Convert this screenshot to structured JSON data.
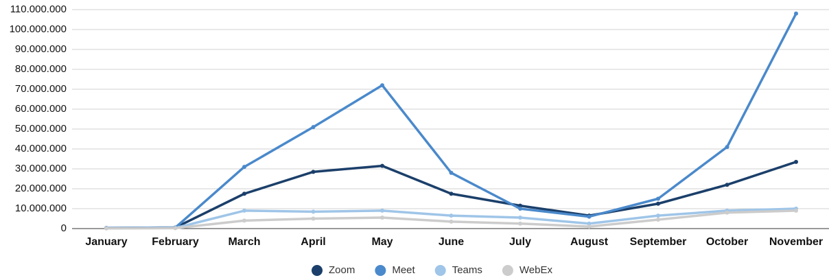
{
  "chart_data": {
    "type": "line",
    "categories": [
      "January",
      "February",
      "March",
      "April",
      "May",
      "June",
      "July",
      "August",
      "September",
      "October",
      "November"
    ],
    "series": [
      {
        "name": "Zoom",
        "color": "#1b3f6a",
        "values": [
          300000,
          500000,
          17500000,
          28500000,
          31500000,
          17500000,
          11500000,
          6500000,
          12500000,
          22000000,
          33500000
        ]
      },
      {
        "name": "Meet",
        "color": "#4a89cb",
        "values": [
          300000,
          500000,
          31000000,
          51000000,
          72000000,
          28000000,
          10000000,
          6000000,
          15000000,
          41000000,
          108000000
        ]
      },
      {
        "name": "Teams",
        "color": "#9fc5e8",
        "values": [
          200000,
          300000,
          9000000,
          8500000,
          9000000,
          6500000,
          5500000,
          2500000,
          6500000,
          9000000,
          10000000
        ]
      },
      {
        "name": "WebEx",
        "color": "#cccccc",
        "values": [
          100000,
          200000,
          4000000,
          5000000,
          5500000,
          3500000,
          2500000,
          1000000,
          4500000,
          8000000,
          9000000
        ]
      }
    ],
    "ylim": [
      0,
      110000000
    ],
    "yticks": [
      0,
      {
        "value": 10000000,
        "label": "10.000.000"
      },
      {
        "value": 20000000,
        "label": "20.000.000"
      },
      {
        "value": 30000000,
        "label": "30.000.000"
      },
      {
        "value": 40000000,
        "label": "40.000.000"
      },
      {
        "value": 50000000,
        "label": "50.000.000"
      },
      {
        "value": 60000000,
        "label": "60.000.000"
      },
      {
        "value": 70000000,
        "label": "70.000.000"
      },
      {
        "value": 80000000,
        "label": "80.000.000"
      },
      {
        "value": 90000000,
        "label": "90.000.000"
      },
      {
        "value": 100000000,
        "label": "100.000.000"
      },
      {
        "value": 110000000,
        "label": "110.000.000"
      }
    ],
    "grid": true,
    "legend": "bottom"
  }
}
